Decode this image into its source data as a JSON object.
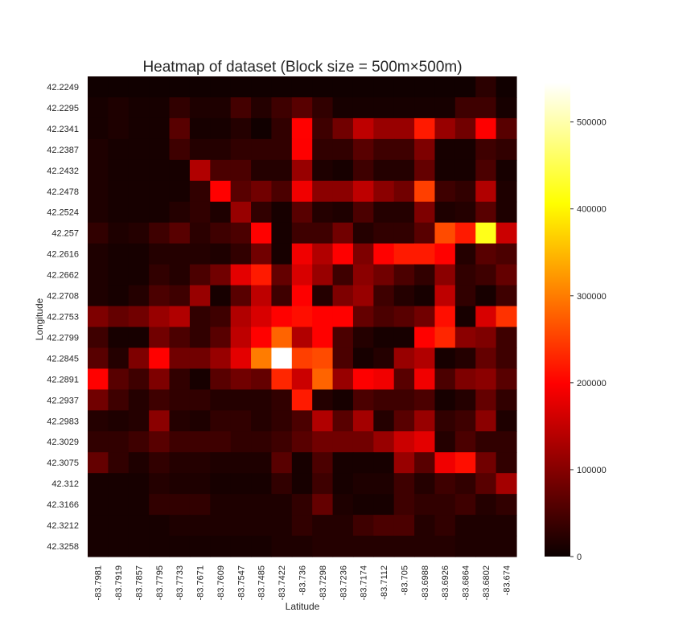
{
  "chart_data": {
    "type": "heatmap",
    "title": "Heatmap of dataset (Block size = 500m×500m)",
    "xlabel": "Latitude",
    "ylabel": "Longitude",
    "x_categories": [
      "-83.7981",
      "-83.7919",
      "-83.7857",
      "-83.7795",
      "-83.7733",
      "-83.7671",
      "-83.7609",
      "-83.7547",
      "-83.7485",
      "-83.7422",
      "-83.736",
      "-83.7298",
      "-83.7236",
      "-83.7174",
      "-83.7112",
      "-83.705",
      "-83.6988",
      "-83.6926",
      "-83.6864",
      "-83.6802",
      "-83.674"
    ],
    "y_categories": [
      "42.2249",
      "42.2295",
      "42.2341",
      "42.2387",
      "42.2432",
      "42.2478",
      "42.2524",
      "42.257",
      "42.2616",
      "42.2662",
      "42.2708",
      "42.2753",
      "42.2799",
      "42.2845",
      "42.2891",
      "42.2937",
      "42.2983",
      "42.3029",
      "42.3075",
      "42.312",
      "42.3166",
      "42.3212",
      "42.3258"
    ],
    "colormap": "hot",
    "colorbar": {
      "min": 0,
      "max": 545000,
      "ticks": [
        0,
        100000,
        200000,
        300000,
        400000,
        500000
      ],
      "tick_labels": [
        "0",
        "100000",
        "200000",
        "300000",
        "400000",
        "500000"
      ]
    },
    "values": [
      [
        5000,
        5000,
        5000,
        5000,
        5000,
        5000,
        5000,
        5000,
        5000,
        5000,
        5000,
        5000,
        5000,
        5000,
        5000,
        5000,
        5000,
        5000,
        5000,
        25000,
        5000
      ],
      [
        10000,
        15000,
        10000,
        10000,
        30000,
        15000,
        15000,
        45000,
        20000,
        40000,
        60000,
        30000,
        10000,
        10000,
        10000,
        10000,
        10000,
        10000,
        40000,
        40000,
        10000
      ],
      [
        10000,
        15000,
        10000,
        10000,
        60000,
        10000,
        10000,
        20000,
        5000,
        30000,
        200000,
        40000,
        80000,
        140000,
        110000,
        110000,
        220000,
        110000,
        80000,
        190000,
        60000
      ],
      [
        15000,
        10000,
        10000,
        10000,
        40000,
        20000,
        20000,
        30000,
        30000,
        30000,
        190000,
        30000,
        30000,
        60000,
        40000,
        40000,
        90000,
        10000,
        10000,
        40000,
        30000
      ],
      [
        15000,
        10000,
        10000,
        10000,
        10000,
        130000,
        50000,
        50000,
        20000,
        20000,
        110000,
        15000,
        10000,
        40000,
        20000,
        20000,
        70000,
        10000,
        10000,
        50000,
        10000
      ],
      [
        15000,
        10000,
        10000,
        10000,
        10000,
        30000,
        200000,
        60000,
        80000,
        50000,
        180000,
        100000,
        100000,
        140000,
        100000,
        80000,
        250000,
        40000,
        30000,
        130000,
        15000
      ],
      [
        15000,
        10000,
        10000,
        10000,
        20000,
        30000,
        15000,
        110000,
        30000,
        10000,
        60000,
        20000,
        15000,
        50000,
        20000,
        20000,
        90000,
        15000,
        20000,
        60000,
        15000
      ],
      [
        30000,
        15000,
        20000,
        40000,
        60000,
        25000,
        40000,
        50000,
        200000,
        10000,
        40000,
        40000,
        80000,
        20000,
        30000,
        30000,
        60000,
        260000,
        220000,
        420000,
        150000
      ],
      [
        15000,
        10000,
        10000,
        20000,
        20000,
        20000,
        15000,
        30000,
        80000,
        10000,
        180000,
        130000,
        190000,
        90000,
        200000,
        220000,
        220000,
        200000,
        20000,
        60000,
        50000
      ],
      [
        15000,
        10000,
        10000,
        30000,
        20000,
        50000,
        80000,
        170000,
        220000,
        70000,
        160000,
        110000,
        40000,
        100000,
        80000,
        50000,
        30000,
        100000,
        30000,
        40000,
        70000
      ],
      [
        15000,
        10000,
        20000,
        50000,
        40000,
        110000,
        10000,
        60000,
        140000,
        40000,
        190000,
        20000,
        90000,
        110000,
        40000,
        20000,
        10000,
        140000,
        30000,
        10000,
        40000
      ],
      [
        90000,
        70000,
        80000,
        110000,
        130000,
        30000,
        40000,
        130000,
        160000,
        200000,
        210000,
        200000,
        200000,
        70000,
        50000,
        60000,
        80000,
        210000,
        10000,
        160000,
        240000
      ],
      [
        40000,
        10000,
        10000,
        80000,
        50000,
        30000,
        60000,
        140000,
        200000,
        280000,
        130000,
        200000,
        50000,
        20000,
        10000,
        10000,
        200000,
        230000,
        100000,
        90000,
        40000
      ],
      [
        60000,
        20000,
        90000,
        200000,
        80000,
        80000,
        110000,
        170000,
        300000,
        545000,
        250000,
        260000,
        50000,
        10000,
        20000,
        110000,
        130000,
        10000,
        20000,
        70000,
        40000
      ],
      [
        200000,
        60000,
        40000,
        90000,
        30000,
        10000,
        60000,
        80000,
        70000,
        230000,
        150000,
        280000,
        110000,
        190000,
        180000,
        60000,
        180000,
        50000,
        90000,
        100000,
        60000
      ],
      [
        80000,
        40000,
        20000,
        40000,
        30000,
        30000,
        20000,
        20000,
        20000,
        30000,
        220000,
        20000,
        10000,
        50000,
        40000,
        40000,
        50000,
        10000,
        20000,
        70000,
        30000
      ],
      [
        20000,
        15000,
        20000,
        100000,
        20000,
        15000,
        30000,
        30000,
        20000,
        30000,
        50000,
        130000,
        60000,
        120000,
        20000,
        60000,
        110000,
        30000,
        40000,
        100000,
        15000
      ],
      [
        30000,
        30000,
        40000,
        60000,
        40000,
        40000,
        40000,
        30000,
        30000,
        40000,
        60000,
        80000,
        80000,
        80000,
        110000,
        150000,
        170000,
        20000,
        50000,
        30000,
        30000
      ],
      [
        70000,
        30000,
        15000,
        30000,
        20000,
        20000,
        15000,
        15000,
        15000,
        60000,
        10000,
        50000,
        10000,
        10000,
        10000,
        110000,
        60000,
        180000,
        210000,
        80000,
        30000
      ],
      [
        10000,
        10000,
        10000,
        20000,
        15000,
        15000,
        10000,
        10000,
        10000,
        30000,
        10000,
        40000,
        10000,
        15000,
        15000,
        40000,
        20000,
        40000,
        30000,
        60000,
        120000
      ],
      [
        10000,
        10000,
        10000,
        30000,
        30000,
        30000,
        15000,
        15000,
        15000,
        15000,
        30000,
        70000,
        15000,
        10000,
        10000,
        40000,
        30000,
        30000,
        40000,
        20000,
        30000
      ],
      [
        10000,
        10000,
        10000,
        10000,
        15000,
        15000,
        15000,
        15000,
        15000,
        15000,
        30000,
        20000,
        20000,
        40000,
        50000,
        50000,
        20000,
        30000,
        15000,
        15000,
        15000
      ],
      [
        10000,
        10000,
        10000,
        10000,
        10000,
        10000,
        10000,
        10000,
        10000,
        15000,
        15000,
        20000,
        20000,
        20000,
        20000,
        20000,
        20000,
        20000,
        15000,
        15000,
        15000
      ]
    ]
  }
}
